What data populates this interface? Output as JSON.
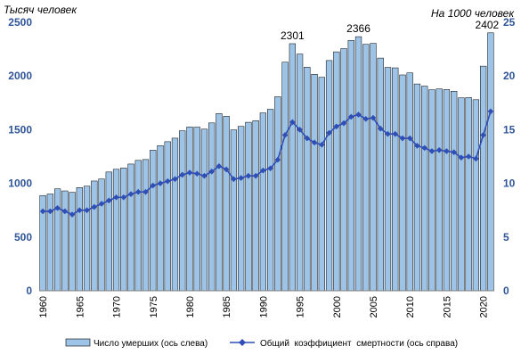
{
  "chart_data": {
    "type": "bar+line",
    "ylabel_left": "Тысяч человек",
    "ylabel_right": "На 1000 человек",
    "ylim_left": [
      0,
      2500
    ],
    "ylim_right": [
      0,
      25
    ],
    "yticks_left": [
      "0",
      "500",
      "1000",
      "1500",
      "2000",
      "2500"
    ],
    "yticks_right": [
      "0",
      "5",
      "10",
      "15",
      "20",
      "25"
    ],
    "xticks": [
      "1960",
      "1965",
      "1970",
      "1975",
      "1980",
      "1985",
      "1990",
      "1995",
      "2000",
      "2005",
      "2010",
      "2015",
      "2020"
    ],
    "x": [
      1960,
      1961,
      1962,
      1963,
      1964,
      1965,
      1966,
      1967,
      1968,
      1969,
      1970,
      1971,
      1972,
      1973,
      1974,
      1975,
      1976,
      1977,
      1978,
      1979,
      1980,
      1981,
      1982,
      1983,
      1984,
      1985,
      1986,
      1987,
      1988,
      1989,
      1990,
      1991,
      1992,
      1993,
      1994,
      1995,
      1996,
      1997,
      1998,
      1999,
      2000,
      2001,
      2002,
      2003,
      2004,
      2005,
      2006,
      2007,
      2008,
      2009,
      2010,
      2011,
      2012,
      2013,
      2014,
      2015,
      2016,
      2017,
      2018,
      2019,
      2020,
      2021
    ],
    "series": [
      {
        "name": "Число умерших (ось слева)",
        "kind": "bar",
        "axis": "left",
        "color": "#9dc3e6",
        "values": [
          887,
          901,
          949,
          930,
          917,
          961,
          974,
          1022,
          1041,
          1106,
          1131,
          1143,
          1180,
          1214,
          1222,
          1309,
          1352,
          1388,
          1421,
          1490,
          1525,
          1524,
          1505,
          1563,
          1650,
          1625,
          1498,
          1531,
          1569,
          1584,
          1656,
          1690,
          1807,
          2129,
          2301,
          2204,
          2082,
          2016,
          1988,
          2144,
          2225,
          2255,
          2332,
          2366,
          2295,
          2304,
          2167,
          2080,
          2076,
          2010,
          2029,
          1926,
          1906,
          1872,
          1880,
          1874,
          1858,
          1797,
          1799,
          1779,
          2092,
          2402
        ]
      },
      {
        "name": "Общий  коэффициент  смертности (ось справа)",
        "kind": "line",
        "axis": "right",
        "color": "#2e4fb8",
        "values": [
          7.4,
          7.4,
          7.7,
          7.4,
          7.1,
          7.5,
          7.5,
          7.8,
          8.1,
          8.4,
          8.7,
          8.7,
          9.0,
          9.2,
          9.2,
          9.8,
          10.0,
          10.2,
          10.4,
          10.8,
          11.0,
          10.9,
          10.7,
          11.1,
          11.6,
          11.3,
          10.4,
          10.5,
          10.7,
          10.7,
          11.2,
          11.4,
          12.2,
          14.5,
          15.7,
          15.0,
          14.2,
          13.8,
          13.6,
          14.7,
          15.3,
          15.6,
          16.2,
          16.4,
          16.0,
          16.1,
          15.1,
          14.6,
          14.6,
          14.2,
          14.2,
          13.5,
          13.3,
          13.0,
          13.1,
          13.0,
          12.9,
          12.4,
          12.5,
          12.3,
          14.5,
          16.7
        ]
      }
    ],
    "annotations": [
      {
        "year": 1994,
        "label": "2301"
      },
      {
        "year": 2003,
        "label": "2366"
      },
      {
        "year": 2021,
        "label": "2402"
      }
    ],
    "legend_position": "bottom",
    "grid": false
  }
}
